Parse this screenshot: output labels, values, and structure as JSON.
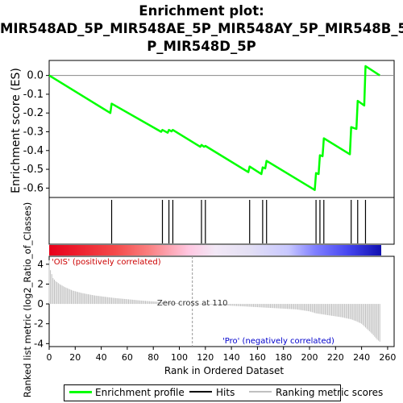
{
  "title_lines": [
    "Enrichment plot:",
    "MIR548AD_5P_MIR548AE_5P_MIR548AY_5P_MIR548B_5",
    "P_MIR548D_5P"
  ],
  "colors": {
    "profile": "#00ff00",
    "hits": "#000000",
    "metric": "#c0c0c0",
    "pos_label": "#cc0000",
    "neg_label": "#0000cc"
  },
  "chart_data": {
    "type": "line",
    "title": "Enrichment plot: MIR548AD_5P_MIR548AE_5P_MIR548AY_5P_MIR548B_5P_MIR548D_5P",
    "xlabel": "Rank in Ordered Dataset",
    "ylabel_top": "Enrichment score (ES)",
    "ylabel_bottom": "Ranked list metric (log2_Ratio_of_Classes)",
    "xlim": [
      0,
      265
    ],
    "x_ticks": [
      0,
      20,
      40,
      60,
      80,
      100,
      120,
      140,
      160,
      180,
      200,
      220,
      240,
      260
    ],
    "es_ylim": [
      -0.65,
      0.08
    ],
    "es_ticks": [
      0.0,
      -0.1,
      -0.2,
      -0.3,
      -0.4,
      -0.5,
      -0.6
    ],
    "es_tick_labels": [
      "0.0",
      "-0.1",
      "-0.2",
      "-0.3",
      "-0.4",
      "-0.5",
      "-0.6"
    ],
    "metric_ylim": [
      -4.3,
      4.8
    ],
    "metric_ticks": [
      4,
      2,
      0,
      -2,
      -4
    ],
    "enrichment_profile": {
      "x": [
        0,
        47,
        48,
        86,
        87,
        91,
        92,
        94,
        95,
        116,
        117,
        119,
        120,
        153,
        154,
        163,
        164,
        166,
        167,
        204,
        205,
        207,
        208,
        210,
        211,
        231,
        232,
        236,
        237,
        242,
        243,
        254
      ],
      "y": [
        0.0,
        -0.2,
        -0.15,
        -0.3,
        -0.29,
        -0.305,
        -0.29,
        -0.298,
        -0.29,
        -0.38,
        -0.37,
        -0.38,
        -0.375,
        -0.515,
        -0.485,
        -0.525,
        -0.49,
        -0.495,
        -0.455,
        -0.61,
        -0.52,
        -0.525,
        -0.425,
        -0.43,
        -0.335,
        -0.42,
        -0.275,
        -0.285,
        -0.135,
        -0.16,
        0.05,
        0.0
      ]
    },
    "hits": [
      48,
      87,
      92,
      95,
      117,
      120,
      154,
      164,
      167,
      205,
      208,
      211,
      232,
      237,
      243
    ],
    "n_genes": 255,
    "metric_profile": {
      "x": [
        0,
        1,
        3,
        5,
        8,
        12,
        18,
        25,
        35,
        50,
        70,
        90,
        110,
        130,
        150,
        170,
        190,
        200,
        205,
        215,
        225,
        232,
        236,
        240,
        244,
        248,
        252,
        255
      ],
      "y": [
        4.4,
        3.4,
        2.6,
        2.3,
        2.0,
        1.7,
        1.35,
        1.1,
        0.85,
        0.6,
        0.35,
        0.15,
        0.0,
        -0.12,
        -0.25,
        -0.4,
        -0.55,
        -0.75,
        -0.95,
        -1.15,
        -1.35,
        -1.55,
        -1.75,
        -2.0,
        -2.5,
        -3.0,
        -3.6,
        -3.9
      ]
    },
    "zero_cross": 110,
    "zero_cross_label": "Zero cross at 110",
    "pos_label": "'OIS' (positively correlated)",
    "neg_label": "'Pro' (negatively correlated)"
  },
  "legend": {
    "profile_label": "Enrichment profile",
    "hits_label": "Hits",
    "metric_label": "Ranking metric scores"
  }
}
